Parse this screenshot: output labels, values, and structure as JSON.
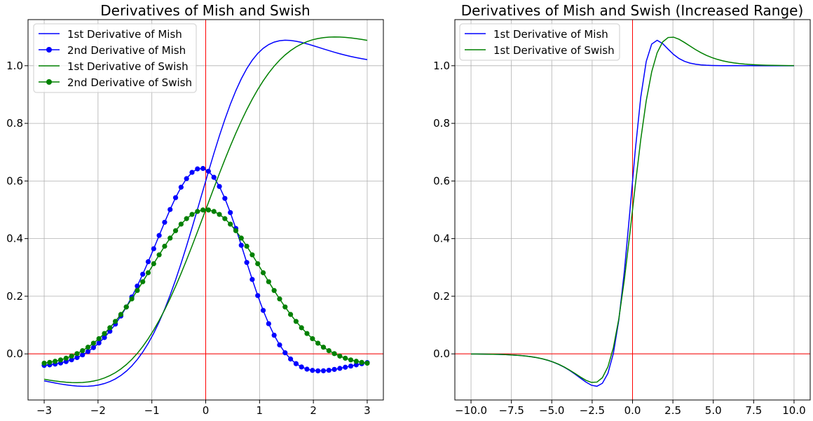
{
  "chart_data": [
    {
      "type": "line",
      "title": "Derivatives of Mish and Swish",
      "xlabel": "",
      "ylabel": "",
      "xlim": [
        -3.3,
        3.3
      ],
      "ylim": [
        -0.16,
        1.16
      ],
      "xticks": [
        -3,
        -2,
        -1,
        0,
        1,
        2,
        3
      ],
      "yticks": [
        0.0,
        0.2,
        0.4,
        0.6,
        0.8,
        1.0
      ],
      "xtick_labels": [
        "−3",
        "−2",
        "−1",
        "0",
        "1",
        "2",
        "3"
      ],
      "ytick_labels": [
        "0.0",
        "0.2",
        "0.4",
        "0.6",
        "0.8",
        "1.0"
      ],
      "grid": true,
      "reference_lines": {
        "x": 0,
        "y": 0,
        "color": "#ff0000"
      },
      "legend_position": "top-left",
      "x_range": [
        -3,
        3
      ],
      "samples": 60,
      "series": [
        {
          "name": "1st Derivative of Mish",
          "color": "#0000ff",
          "marker": false,
          "func": "mish_d1"
        },
        {
          "name": "2nd Derivative of Mish",
          "color": "#0000ff",
          "marker": true,
          "func": "mish_d2"
        },
        {
          "name": "1st Derivative of Swish",
          "color": "#008000",
          "marker": false,
          "func": "swish_d1"
        },
        {
          "name": "2nd Derivative of Swish",
          "color": "#008000",
          "marker": true,
          "func": "swish_d2"
        }
      ]
    },
    {
      "type": "line",
      "title": "Derivatives of Mish and Swish (Increased Range)",
      "xlabel": "",
      "ylabel": "",
      "xlim": [
        -11,
        11
      ],
      "ylim": [
        -0.16,
        1.16
      ],
      "xticks": [
        -10,
        -7.5,
        -5,
        -2.5,
        0,
        2.5,
        5,
        7.5,
        10
      ],
      "yticks": [
        0.0,
        0.2,
        0.4,
        0.6,
        0.8,
        1.0
      ],
      "xtick_labels": [
        "−10.0",
        "−7.5",
        "−5.0",
        "−2.5",
        "0.0",
        "2.5",
        "5.0",
        "7.5",
        "10.0"
      ],
      "ytick_labels": [
        "0.0",
        "0.2",
        "0.4",
        "0.6",
        "0.8",
        "1.0"
      ],
      "grid": true,
      "reference_lines": {
        "x": 0,
        "y": 0,
        "color": "#ff0000"
      },
      "legend_position": "top-left",
      "x_range": [
        -10,
        10
      ],
      "samples": 60,
      "series": [
        {
          "name": "1st Derivative of Mish",
          "color": "#0000ff",
          "marker": false,
          "func": "mish_d1"
        },
        {
          "name": "1st Derivative of Swish",
          "color": "#008000",
          "marker": false,
          "func": "swish_d1"
        }
      ]
    }
  ]
}
